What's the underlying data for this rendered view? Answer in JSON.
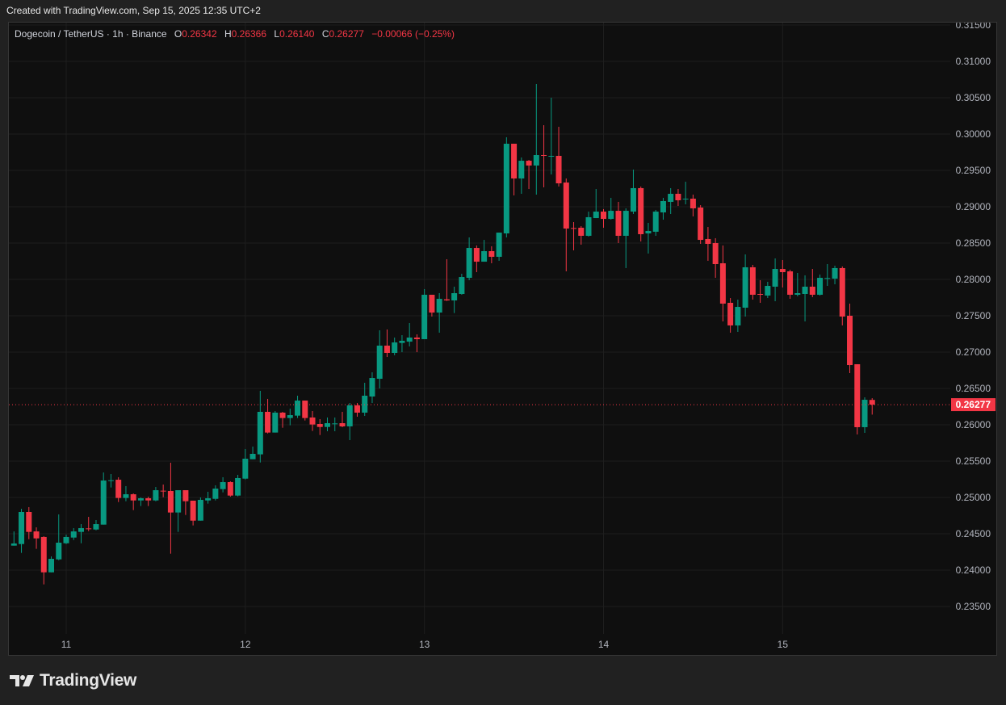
{
  "credit": "Created with TradingView.com, Sep 15, 2025 12:35 UTC+2",
  "legend": {
    "symbol": "Dogecoin / TetherUS · 1h · Binance",
    "o_label": "O",
    "open": "0.26342",
    "h_label": "H",
    "high": "0.26366",
    "l_label": "L",
    "low": "0.26140",
    "c_label": "C",
    "close": "0.26277",
    "change": "−0.00066 (−0.25%)"
  },
  "brand": "TradingView",
  "colors": {
    "up": "#089981",
    "down": "#f23645",
    "background": "#0f0f0f",
    "grid": "#1e1e1e",
    "axis_text": "#b2b5be"
  },
  "chart_data": {
    "type": "candlestick",
    "interval": "1h",
    "ylim": [
      0.2315,
      0.3165
    ],
    "y_ticks": [
      "0.31500",
      "0.31000",
      "0.30500",
      "0.30000",
      "0.29500",
      "0.29000",
      "0.28500",
      "0.28000",
      "0.27500",
      "0.27000",
      "0.26500",
      "0.26000",
      "0.25500",
      "0.25000",
      "0.24500",
      "0.24000",
      "0.23500"
    ],
    "x_ticks": [
      "11",
      "12",
      "13",
      "14",
      "15"
    ],
    "last_price": "0.26277",
    "grid": true,
    "ohlc_fields": [
      "open",
      "high",
      "low",
      "close"
    ],
    "ohlc": [
      [
        0.24337,
        0.24533,
        0.24337,
        0.24367
      ],
      [
        0.24359,
        0.24844,
        0.24237,
        0.248
      ],
      [
        0.248,
        0.24867,
        0.24426,
        0.24526
      ],
      [
        0.24533,
        0.24589,
        0.24293,
        0.24437
      ],
      [
        0.24456,
        0.24467,
        0.23804,
        0.2397
      ],
      [
        0.2397,
        0.24189,
        0.2397,
        0.24156
      ],
      [
        0.24148,
        0.24767,
        0.24137,
        0.24378
      ],
      [
        0.2437,
        0.24489,
        0.24359,
        0.24456
      ],
      [
        0.24448,
        0.24578,
        0.24415,
        0.24533
      ],
      [
        0.24526,
        0.24633,
        0.2437,
        0.24578
      ],
      [
        0.24574,
        0.24733,
        0.24537,
        0.2457
      ],
      [
        0.24559,
        0.24689,
        0.24548,
        0.24633
      ],
      [
        0.24626,
        0.25344,
        0.24626,
        0.25233
      ],
      [
        0.25233,
        0.25322,
        0.25137,
        0.25237
      ],
      [
        0.25244,
        0.25278,
        0.24937,
        0.24993
      ],
      [
        0.24993,
        0.25156,
        0.24948,
        0.25044
      ],
      [
        0.25044,
        0.25056,
        0.24826,
        0.24959
      ],
      [
        0.24959,
        0.25,
        0.24882,
        0.24989
      ],
      [
        0.24989,
        0.25011,
        0.24882,
        0.24959
      ],
      [
        0.24959,
        0.25144,
        0.24948,
        0.251
      ],
      [
        0.25093,
        0.25178,
        0.25004,
        0.25085
      ],
      [
        0.25089,
        0.25478,
        0.24226,
        0.24793
      ],
      [
        0.24793,
        0.251,
        0.24526,
        0.251
      ],
      [
        0.251,
        0.251,
        0.24759,
        0.24948
      ],
      [
        0.24956,
        0.24956,
        0.24615,
        0.24681
      ],
      [
        0.24681,
        0.25,
        0.24681,
        0.24967
      ],
      [
        0.24959,
        0.25078,
        0.24915,
        0.24989
      ],
      [
        0.24981,
        0.25167,
        0.24959,
        0.25122
      ],
      [
        0.25115,
        0.25278,
        0.2507,
        0.25211
      ],
      [
        0.25211,
        0.25222,
        0.25011,
        0.25026
      ],
      [
        0.25026,
        0.25311,
        0.25015,
        0.25267
      ],
      [
        0.25259,
        0.25667,
        0.25248,
        0.25533
      ],
      [
        0.25526,
        0.257,
        0.25526,
        0.256
      ],
      [
        0.25593,
        0.26467,
        0.25481,
        0.26178
      ],
      [
        0.26178,
        0.26356,
        0.25881,
        0.25893
      ],
      [
        0.25893,
        0.26189,
        0.25893,
        0.26167
      ],
      [
        0.26167,
        0.26178,
        0.25959,
        0.26093
      ],
      [
        0.26093,
        0.26222,
        0.25993,
        0.26133
      ],
      [
        0.26126,
        0.264,
        0.26093,
        0.26333
      ],
      [
        0.26333,
        0.26333,
        0.26059,
        0.26093
      ],
      [
        0.261,
        0.26189,
        0.25915,
        0.26004
      ],
      [
        0.26011,
        0.26078,
        0.25859,
        0.2597
      ],
      [
        0.2597,
        0.261,
        0.25911,
        0.26022
      ],
      [
        0.26015,
        0.261,
        0.25911,
        0.26019
      ],
      [
        0.26022,
        0.26178,
        0.25967,
        0.25978
      ],
      [
        0.25978,
        0.263,
        0.25789,
        0.26267
      ],
      [
        0.26267,
        0.263,
        0.26111,
        0.26167
      ],
      [
        0.26167,
        0.26578,
        0.26122,
        0.264
      ],
      [
        0.26389,
        0.26722,
        0.263,
        0.26644
      ],
      [
        0.26633,
        0.273,
        0.265,
        0.27089
      ],
      [
        0.27089,
        0.27311,
        0.26933,
        0.26989
      ],
      [
        0.26989,
        0.272,
        0.26956,
        0.27133
      ],
      [
        0.27126,
        0.27233,
        0.26999,
        0.27156
      ],
      [
        0.27144,
        0.274,
        0.27078,
        0.272
      ],
      [
        0.272,
        0.27244,
        0.26999,
        0.27178
      ],
      [
        0.27178,
        0.27867,
        0.27178,
        0.27789
      ],
      [
        0.27789,
        0.27789,
        0.27489,
        0.27544
      ],
      [
        0.27544,
        0.27811,
        0.27267,
        0.27733
      ],
      [
        0.27726,
        0.28278,
        0.27704,
        0.27711
      ],
      [
        0.27711,
        0.279,
        0.27537,
        0.27811
      ],
      [
        0.278,
        0.28078,
        0.27789,
        0.28033
      ],
      [
        0.28022,
        0.28578,
        0.27989,
        0.28433
      ],
      [
        0.28433,
        0.28467,
        0.281,
        0.28244
      ],
      [
        0.28244,
        0.28544,
        0.28244,
        0.28389
      ],
      [
        0.28389,
        0.28456,
        0.28222,
        0.28311
      ],
      [
        0.28311,
        0.28644,
        0.28256,
        0.28644
      ],
      [
        0.28633,
        0.29956,
        0.28578,
        0.29867
      ],
      [
        0.29867,
        0.29867,
        0.29156,
        0.29389
      ],
      [
        0.29389,
        0.29678,
        0.29178,
        0.29633
      ],
      [
        0.29633,
        0.29644,
        0.29244,
        0.29567
      ],
      [
        0.29567,
        0.30689,
        0.29167,
        0.29711
      ],
      [
        0.29711,
        0.30122,
        0.29267,
        0.297
      ],
      [
        0.29696,
        0.305,
        0.29444,
        0.297
      ],
      [
        0.297,
        0.301,
        0.29278,
        0.29322
      ],
      [
        0.29333,
        0.29389,
        0.28111,
        0.287
      ],
      [
        0.28707,
        0.28789,
        0.284,
        0.287
      ],
      [
        0.28711,
        0.28733,
        0.28478,
        0.286
      ],
      [
        0.286,
        0.28933,
        0.28589,
        0.28856
      ],
      [
        0.28844,
        0.29244,
        0.28844,
        0.28933
      ],
      [
        0.28933,
        0.28967,
        0.28711,
        0.28833
      ],
      [
        0.28833,
        0.29122,
        0.28822,
        0.28944
      ],
      [
        0.28944,
        0.29067,
        0.285,
        0.286
      ],
      [
        0.286,
        0.28978,
        0.28156,
        0.28944
      ],
      [
        0.28933,
        0.29511,
        0.289,
        0.29256
      ],
      [
        0.29256,
        0.29278,
        0.28522,
        0.28622
      ],
      [
        0.28633,
        0.28778,
        0.28356,
        0.28667
      ],
      [
        0.28656,
        0.28956,
        0.286,
        0.28933
      ],
      [
        0.28922,
        0.29122,
        0.28822,
        0.29078
      ],
      [
        0.29067,
        0.29256,
        0.289,
        0.29178
      ],
      [
        0.29178,
        0.29244,
        0.29011,
        0.29089
      ],
      [
        0.291,
        0.29344,
        0.29033,
        0.29111
      ],
      [
        0.29111,
        0.29167,
        0.28867,
        0.28978
      ],
      [
        0.28989,
        0.29022,
        0.28489,
        0.28544
      ],
      [
        0.28556,
        0.28722,
        0.28256,
        0.28489
      ],
      [
        0.285,
        0.28567,
        0.28022,
        0.28211
      ],
      [
        0.28222,
        0.28467,
        0.27422,
        0.27667
      ],
      [
        0.27678,
        0.27744,
        0.27267,
        0.27367
      ],
      [
        0.27367,
        0.27722,
        0.27278,
        0.27622
      ],
      [
        0.27611,
        0.28344,
        0.27489,
        0.28167
      ],
      [
        0.28167,
        0.282,
        0.27722,
        0.27789
      ],
      [
        0.278,
        0.27989,
        0.27678,
        0.27796
      ],
      [
        0.27778,
        0.27967,
        0.27744,
        0.27911
      ],
      [
        0.279,
        0.28289,
        0.277,
        0.28144
      ],
      [
        0.28144,
        0.28267,
        0.27889,
        0.281
      ],
      [
        0.28111,
        0.28133,
        0.27733,
        0.27789
      ],
      [
        0.27789,
        0.28089,
        0.27767,
        0.27811
      ],
      [
        0.278,
        0.28056,
        0.27422,
        0.279
      ],
      [
        0.279,
        0.28144,
        0.27756,
        0.27789
      ],
      [
        0.27789,
        0.28067,
        0.27778,
        0.28022
      ],
      [
        0.28015,
        0.28211,
        0.27911,
        0.28019
      ],
      [
        0.28011,
        0.28189,
        0.27933,
        0.28156
      ],
      [
        0.28156,
        0.28178,
        0.27367,
        0.27489
      ],
      [
        0.275,
        0.27667,
        0.26711,
        0.26822
      ],
      [
        0.26833,
        0.26833,
        0.25867,
        0.25967
      ],
      [
        0.25967,
        0.26378,
        0.25889,
        0.26344
      ],
      [
        0.26342,
        0.26366,
        0.2614,
        0.26277
      ]
    ]
  }
}
